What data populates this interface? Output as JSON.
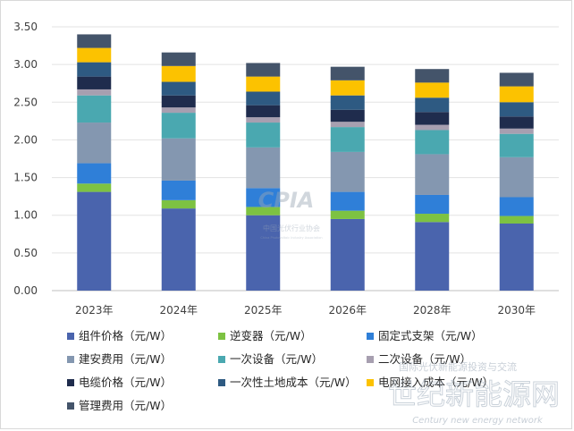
{
  "chart_data": {
    "type": "bar",
    "stacked": true,
    "categories": [
      "2023年",
      "2024年",
      "2025年",
      "2026年",
      "2028年",
      "2030年"
    ],
    "ylim": [
      0,
      3.5
    ],
    "yticks": [
      "0.00",
      "0.50",
      "1.00",
      "1.50",
      "2.00",
      "2.50",
      "3.00",
      "3.50"
    ],
    "grid": true,
    "legend_position": "bottom",
    "series": [
      {
        "name": "组件价格（元/W）",
        "color": "#4a64ad",
        "values": [
          1.31,
          1.09,
          1.0,
          0.95,
          0.91,
          0.89
        ]
      },
      {
        "name": "逆变器（元/W）",
        "color": "#7dc242",
        "values": [
          0.11,
          0.11,
          0.11,
          0.11,
          0.11,
          0.1
        ]
      },
      {
        "name": "固定式支架（元/W）",
        "color": "#2f7fd8",
        "values": [
          0.27,
          0.26,
          0.25,
          0.25,
          0.25,
          0.25
        ]
      },
      {
        "name": "建安费用（元/W）",
        "color": "#8497b0",
        "values": [
          0.54,
          0.56,
          0.54,
          0.53,
          0.54,
          0.53
        ]
      },
      {
        "name": "一次设备（元/W）",
        "color": "#4aa8b0",
        "values": [
          0.36,
          0.34,
          0.33,
          0.33,
          0.32,
          0.31
        ]
      },
      {
        "name": "二次设备（元/W）",
        "color": "#a79fb0",
        "values": [
          0.08,
          0.07,
          0.07,
          0.07,
          0.07,
          0.07
        ]
      },
      {
        "name": "电缆价格（元/W）",
        "color": "#1f2c4d",
        "values": [
          0.17,
          0.16,
          0.16,
          0.16,
          0.17,
          0.16
        ]
      },
      {
        "name": "一次性土地成本（元/W）",
        "color": "#2e5a82",
        "values": [
          0.19,
          0.18,
          0.18,
          0.19,
          0.19,
          0.19
        ]
      },
      {
        "name": "电网接入成本（元/W）",
        "color": "#fcc200",
        "values": [
          0.19,
          0.21,
          0.2,
          0.2,
          0.2,
          0.21
        ]
      },
      {
        "name": "管理费用（元/W）",
        "color": "#44546a",
        "values": [
          0.18,
          0.18,
          0.18,
          0.18,
          0.18,
          0.18
        ]
      }
    ]
  },
  "watermarks": {
    "logo_text": "CPIA",
    "org_cn": "中国光伏行业协会",
    "org_en": "China Photovoltaic Industry Association",
    "center_cn": "国际光伏新能源投资与交流",
    "brand_cn": "世纪新能源网",
    "brand_en": "Century new energy network"
  }
}
